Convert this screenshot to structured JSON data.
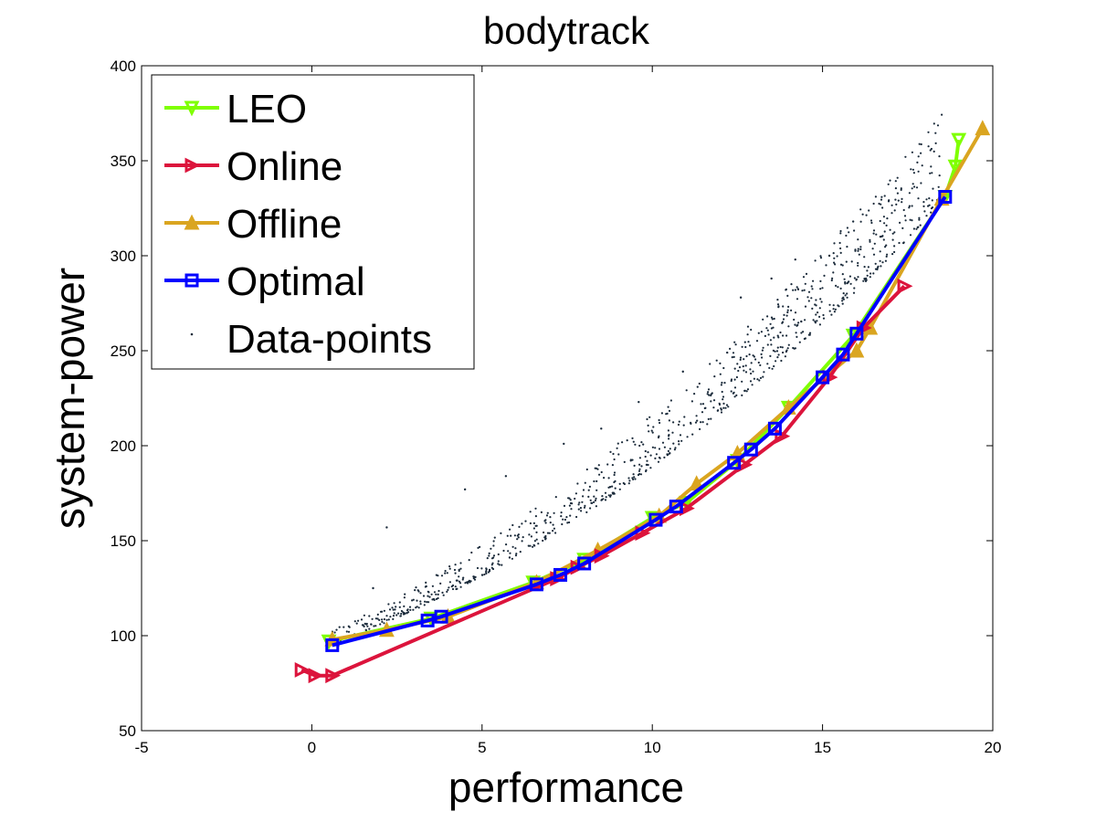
{
  "chart_data": {
    "type": "line",
    "title": "bodytrack",
    "xlabel": "performance",
    "ylabel": "system-power",
    "xlim": [
      -5,
      20
    ],
    "ylim": [
      50,
      400
    ],
    "xticks": [
      "-5",
      "0",
      "5",
      "10",
      "15",
      "20"
    ],
    "yticks": [
      "50",
      "100",
      "150",
      "200",
      "250",
      "300",
      "350",
      "400"
    ],
    "grid": false,
    "legend_position": "top-left",
    "series": [
      {
        "name": "LEO",
        "color": "#7fff00",
        "marker": "triangle-down",
        "x": [
          0.5,
          3.5,
          6.5,
          8,
          10,
          11,
          12.5,
          14,
          15.9,
          18.6,
          18.9
        ],
        "y": [
          97,
          109,
          128,
          140,
          162,
          170,
          192,
          220,
          258,
          331,
          347
        ],
        "extra_points": [
          {
            "x": 19.0,
            "y": 361
          }
        ]
      },
      {
        "name": "Online",
        "color": "#dc143c",
        "marker": "triangle-right",
        "x": [
          -0.3,
          0.1,
          0.6,
          7.2,
          7.8,
          8.5,
          9.7,
          11.0,
          12.7,
          13.8,
          15.2,
          16.2,
          17.4
        ],
        "y": [
          82,
          79,
          79,
          130,
          136,
          142,
          154,
          167,
          190,
          205,
          236,
          262,
          284
        ]
      },
      {
        "name": "Offline",
        "color": "#daa520",
        "marker": "triangle-up",
        "x": [
          0.6,
          2.2,
          4.0,
          6.6,
          8.4,
          10.2,
          11.3,
          12.5,
          14.0,
          16.0,
          16.4,
          18.5,
          19.7
        ],
        "y": [
          98,
          103,
          110,
          128,
          145,
          163,
          180,
          196,
          220,
          250,
          262,
          330,
          367
        ]
      },
      {
        "name": "Optimal",
        "color": "#0000ff",
        "marker": "square",
        "x": [
          0.6,
          3.4,
          3.8,
          6.6,
          7.3,
          8.0,
          10.1,
          10.7,
          12.4,
          12.9,
          13.6,
          15.0,
          15.6,
          16.0,
          18.6
        ],
        "y": [
          95,
          108,
          110,
          127,
          132,
          138,
          161,
          168,
          191,
          198,
          209,
          236,
          248,
          259,
          331
        ]
      },
      {
        "name": "Data-points",
        "color": "#1a2a3a",
        "marker": "dot",
        "x": [],
        "y": []
      }
    ]
  }
}
